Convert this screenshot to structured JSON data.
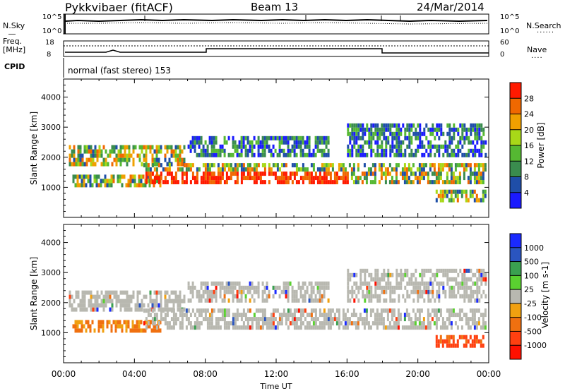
{
  "header": {
    "station": "Pykkvibaer (fitACF)",
    "beam": "Beam 13",
    "date": "24/Mar/2014"
  },
  "noise_panel": {
    "left_label": "N.Sky",
    "right_label": "N.Search",
    "left_ticks": [
      "10^5",
      "10^0"
    ],
    "right_ticks": [
      "10^5",
      "10^0"
    ]
  },
  "freq_panel": {
    "left_label_line1": "Freq.",
    "left_label_line2": "[MHz]",
    "right_label": "Nave",
    "left_ticks": [
      "18",
      "8"
    ],
    "right_ticks": [
      "60",
      "0"
    ]
  },
  "cpid": {
    "label": "CPID",
    "value": "normal (fast stereo) 153"
  },
  "x_axis": {
    "label": "Time UT",
    "ticks": [
      "00:00",
      "04:00",
      "08:00",
      "12:00",
      "16:00",
      "20:00",
      "00:00"
    ]
  },
  "colors": {
    "power": [
      "#1a1aff",
      "#1f4ea8",
      "#3a8c4e",
      "#55b832",
      "#a8d818",
      "#f0a000",
      "#f06800",
      "#ff1a00"
    ],
    "velocity": [
      "#1a2aff",
      "#2a55c0",
      "#3aa050",
      "#5ad030",
      "#b8b8b0",
      "#f0a010",
      "#f07010",
      "#ff4010",
      "#ff1000"
    ]
  },
  "chart_data": [
    {
      "type": "heatmap",
      "ylabel": "Slant Range [km]",
      "xlabel": "",
      "y_ticks": [
        1000,
        2000,
        3000,
        4000
      ],
      "ylim": [
        0,
        4600
      ],
      "xlim_hours": [
        0,
        24
      ],
      "colorbar": {
        "label": "Power [dB]",
        "ticks": [
          "4",
          "8",
          "12",
          "16",
          "20",
          "24",
          "28"
        ],
        "range": [
          0,
          32
        ]
      }
    },
    {
      "type": "heatmap",
      "ylabel": "Slant Range [km]",
      "xlabel": "Time UT",
      "y_ticks": [
        1000,
        2000,
        3000,
        4000
      ],
      "ylim": [
        0,
        4600
      ],
      "xlim_hours": [
        0,
        24
      ],
      "colorbar": {
        "label": "Velocity [m s-1]",
        "ticks": [
          "1000",
          "500",
          "100",
          "25",
          "-25",
          "-100",
          "-500",
          "-1000"
        ]
      }
    }
  ]
}
